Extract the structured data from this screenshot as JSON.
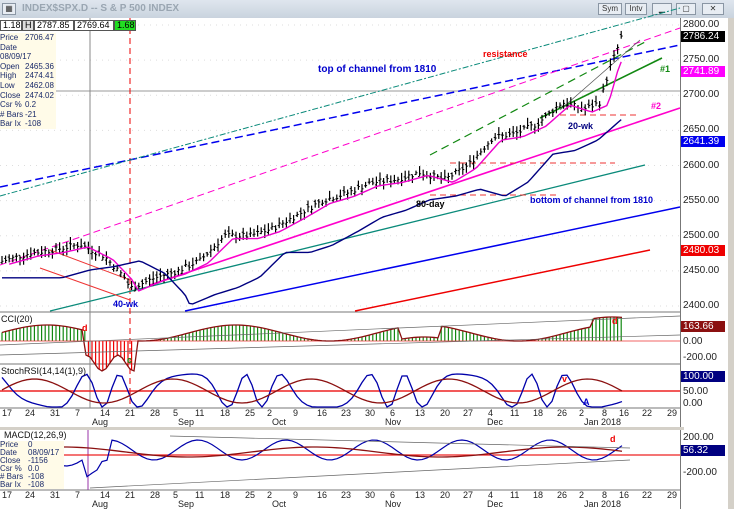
{
  "window": {
    "title": "INDEX$SPX.D -- S & P 500 INDEX",
    "sym_button": "Sym",
    "intv_button": "Intv",
    "minimize": "▁",
    "maximize": "▢",
    "close": "✕"
  },
  "toolbar": {
    "f1": "1.18",
    "h_label": "H",
    "high": "2787.85",
    "last": "2769.64",
    "change": "1.68"
  },
  "info_top": [
    [
      "Price",
      "2706.47"
    ],
    [
      "Date",
      "08/09/17"
    ],
    [
      "Open",
      "2465.36"
    ],
    [
      "High",
      "2474.41"
    ],
    [
      "Low",
      "2462.08"
    ],
    [
      "Close",
      "2474.02"
    ],
    [
      "Csr %",
      "0.2"
    ],
    [
      "# Bars",
      "-21"
    ],
    [
      "Bar Ix",
      "-108"
    ]
  ],
  "info_macd": [
    [
      "Price",
      "0"
    ],
    [
      "Date",
      "08/09/17"
    ],
    [
      "Close",
      "-1156"
    ],
    [
      "Csr %",
      "0.0"
    ],
    [
      "# Bars",
      "-108"
    ],
    [
      "Bar Ix",
      "-108"
    ]
  ],
  "colors": {
    "up": "#000000",
    "blue": "#0000ee",
    "magenta": "#ff00cc",
    "teal": "#0a8a7a",
    "red": "#ee0000",
    "green": "#118811",
    "navy": "#000080"
  },
  "chart_data": [
    {
      "type": "ohlc",
      "title": "INDEX$SPX.D -- S & P 500 INDEX",
      "ylim": [
        2390,
        2810
      ],
      "yticks": [
        "2800.00",
        "2750.00",
        "2700.00",
        "2650.00",
        "2600.00",
        "2550.00",
        "2500.00",
        "2450.00",
        "2400.00"
      ],
      "ytick_values": [
        2800,
        2750,
        2700,
        2650,
        2600,
        2550,
        2500,
        2450,
        2400
      ],
      "value_tags": [
        {
          "label": "2786.24",
          "color": "#000000",
          "value": 2786.24
        },
        {
          "label": "2741.89",
          "color": "#ff00ff",
          "value": 2741.89
        },
        {
          "label": "2641.39",
          "color": "#0000ee",
          "value": 2641.39
        },
        {
          "label": "2480.03",
          "color": "#ee0000",
          "value": 2480.03
        }
      ],
      "closes_weekly": [
        2465,
        2475,
        2480,
        2488,
        2470,
        2440,
        2425,
        2440,
        2450,
        2465,
        2500,
        2500,
        2510,
        2530,
        2550,
        2560,
        2575,
        2580,
        2590,
        2580,
        2600,
        2640,
        2645,
        2660,
        2690,
        2680,
        2690,
        2740,
        2765,
        2786
      ],
      "annotations": {
        "resistance": "resistance",
        "top_channel": "top of channel from 1810",
        "n1": "#1",
        "n2": "#2",
        "wk20": "20-wk",
        "day80": "80-day",
        "bottom_channel": "bottom of channel from 1810",
        "wk40": "40-wk"
      }
    },
    {
      "type": "bar",
      "title": "CCI(20)",
      "yticks": [
        "0.00",
        "-200.00"
      ],
      "tag": "163.66",
      "marker": "d",
      "marker2": "d",
      "marker_low": "c"
    },
    {
      "type": "line",
      "title": "StochRSI(14,14(1),9)",
      "yticks": [
        "50.00",
        "0.00"
      ],
      "tag": "100.00",
      "marker_v": "v",
      "marker_a": "A"
    },
    {
      "type": "line",
      "title": "MACD(12,26,9)",
      "yticks": [
        "200.00",
        "-200.00"
      ],
      "tag": "56.32",
      "marker": "d"
    }
  ],
  "xaxis": {
    "days": [
      "17",
      "24",
      "31",
      "7",
      "14",
      "21",
      "28",
      "5",
      "11",
      "18",
      "25",
      "2",
      "9",
      "16",
      "23",
      "30",
      "6",
      "13",
      "20",
      "27",
      "4",
      "11",
      "18",
      "26",
      "2",
      "8",
      "16",
      "22",
      "29"
    ],
    "months": [
      "Aug",
      "Sep",
      "Oct",
      "Nov",
      "Dec",
      "Jan 2018"
    ]
  }
}
